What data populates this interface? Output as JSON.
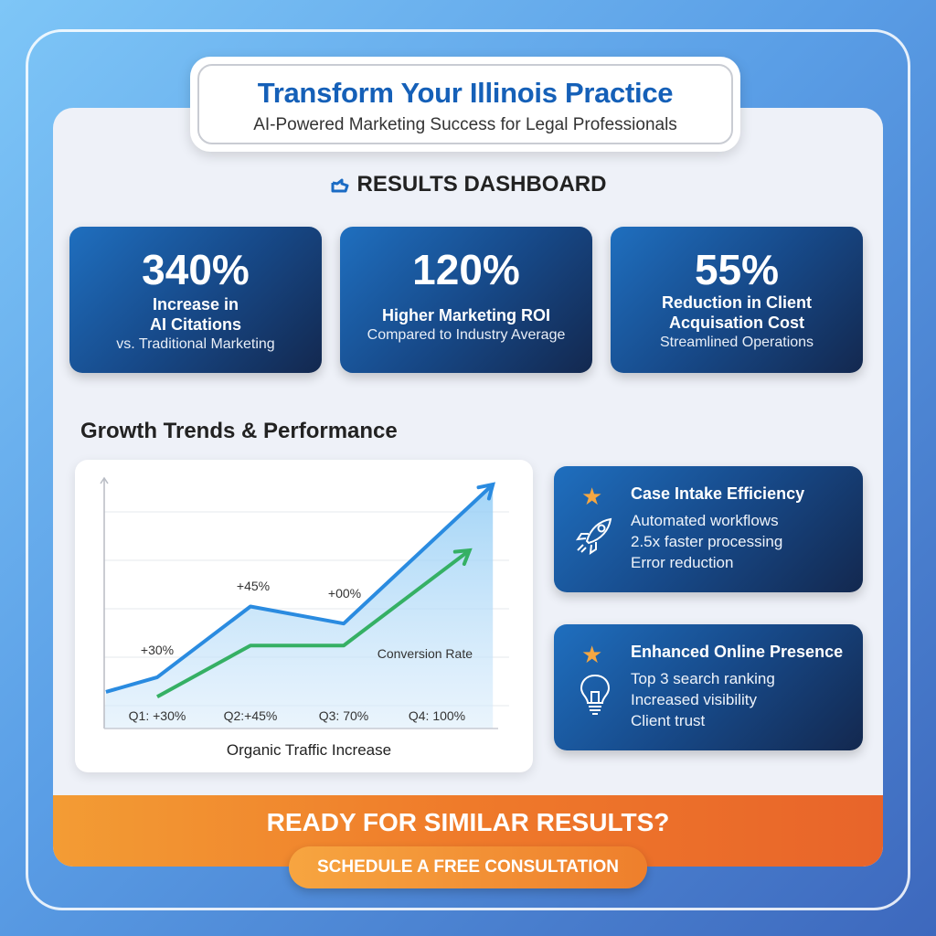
{
  "header": {
    "title": "Transform Your Illinois Practice",
    "subtitle": "AI-Powered Marketing Success for Legal Professionals"
  },
  "dashboard": {
    "title": "RESULTS DASHBOARD",
    "icon": "share-arrow-icon"
  },
  "stats": [
    {
      "value": "340%",
      "line1": "Increase in",
      "line1b": "AI Citations",
      "line2": "vs. Traditional Marketing"
    },
    {
      "value": "120%",
      "line1": "Higher Marketing ROI",
      "line2": "Compared to Industry Average"
    },
    {
      "value": "55%",
      "line1": "Reduction in Client",
      "line1b": "Acquisation Cost",
      "line2": "Streamlined Operations"
    }
  ],
  "section_title": "Growth Trends & Performance",
  "chart_data": {
    "type": "line",
    "xlabel": "Organic Traffic Increase",
    "tick_labels": [
      "Q1: +30%",
      "Q2:+45%",
      "Q3: 70%",
      "Q4: 100%"
    ],
    "annotations": [
      "+30%",
      "+45%",
      "+00%"
    ],
    "ylim": [
      0,
      100
    ],
    "grid": true,
    "series": [
      {
        "color": "#2a8be0",
        "x": [
          0.45,
          1,
          2,
          3,
          4.6
        ],
        "y": [
          15,
          21,
          50,
          43,
          100
        ]
      },
      {
        "name": "Conversion Rate",
        "color": "#35b064",
        "x": [
          1,
          2,
          3,
          4.35
        ],
        "y": [
          13,
          34,
          34,
          73
        ]
      }
    ]
  },
  "features": [
    {
      "title": "Case Intake Efficiency",
      "icon": "rocket-icon",
      "lines": [
        "Automated workflows",
        "2.5x faster processing",
        "Error reduction"
      ]
    },
    {
      "title": "Enhanced Online Presence",
      "icon": "lightbulb-icon",
      "lines": [
        "Top 3 search ranking",
        "Increased visibility",
        "Client trust"
      ]
    }
  ],
  "cta": {
    "question": "READY FOR SIMILAR RESULTS?",
    "button": "SCHEDULE A FREE CONSULTATION"
  },
  "colors": {
    "accent": "#1560b8",
    "cta": "#ef7a2a",
    "star": "#f5a742"
  }
}
